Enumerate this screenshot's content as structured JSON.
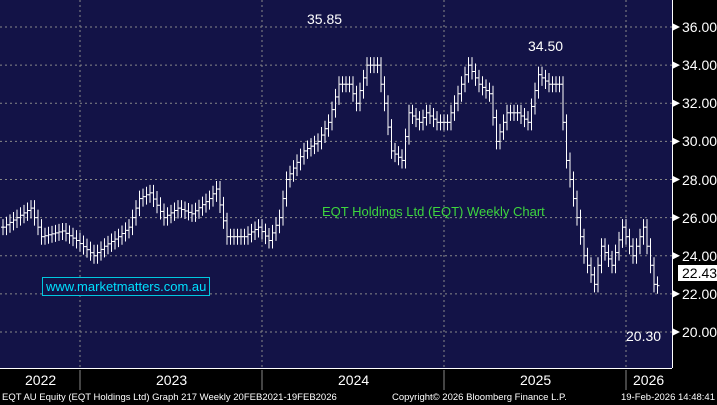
{
  "chart_data": {
    "type": "ohlc-bar",
    "title": "EQT Holdings Ltd (EQT) Weekly Chart",
    "ylim": [
      19.3,
      37
    ],
    "yticks": [
      "20.00",
      "22.00",
      "24.00",
      "26.00",
      "28.00",
      "30.00",
      "32.00",
      "34.00",
      "36.00"
    ],
    "ytick_values": [
      20,
      22,
      24,
      26,
      28,
      30,
      32,
      34,
      36
    ],
    "xticks": [
      "2022",
      "2023",
      "2024",
      "2025",
      "2026"
    ],
    "bar_spread": 0.7,
    "points_week_price": [
      [
        0,
        25.5
      ],
      [
        8,
        26.5
      ],
      [
        11,
        25
      ],
      [
        17,
        25.3
      ],
      [
        21,
        24.8
      ],
      [
        26,
        24
      ],
      [
        29,
        24.5
      ],
      [
        33,
        25
      ],
      [
        36,
        25.5
      ],
      [
        39,
        27
      ],
      [
        42,
        27.3
      ],
      [
        46,
        26
      ],
      [
        50,
        26.5
      ],
      [
        54,
        26.2
      ],
      [
        59,
        27
      ],
      [
        61,
        27.5
      ],
      [
        64,
        25
      ],
      [
        69,
        25
      ],
      [
        73,
        25.5
      ],
      [
        76,
        24.8
      ],
      [
        79,
        26
      ],
      [
        81,
        28
      ],
      [
        86,
        29.5
      ],
      [
        90,
        30
      ],
      [
        93,
        31
      ],
      [
        96,
        33
      ],
      [
        99,
        33
      ],
      [
        101,
        32
      ],
      [
        104,
        34
      ],
      [
        107,
        34
      ],
      [
        109,
        32
      ],
      [
        111,
        29.5
      ],
      [
        114,
        29
      ],
      [
        116,
        31.5
      ],
      [
        119,
        31
      ],
      [
        121,
        31.5
      ],
      [
        124,
        31
      ],
      [
        127,
        31
      ],
      [
        130,
        32.5
      ],
      [
        133,
        34
      ],
      [
        136,
        33
      ],
      [
        139,
        32.5
      ],
      [
        141,
        30
      ],
      [
        144,
        31.5
      ],
      [
        147,
        31.5
      ],
      [
        150,
        31
      ],
      [
        153,
        33.5
      ],
      [
        156,
        33
      ],
      [
        159,
        33
      ],
      [
        161,
        29
      ],
      [
        163,
        27
      ],
      [
        166,
        24
      ],
      [
        169,
        22.5
      ],
      [
        171,
        24.5
      ],
      [
        174,
        23.5
      ],
      [
        177,
        25.5
      ],
      [
        180,
        24
      ],
      [
        183,
        25.5
      ],
      [
        186,
        22.5
      ],
      [
        187,
        22.43
      ]
    ],
    "annotations": {
      "high": "35.85",
      "high2": "34.50",
      "low": "20.30",
      "last": "22.43"
    }
  },
  "website": "www.marketmatters.com.au",
  "footer": {
    "left": "EQT AU Equity (EQT Holdings Ltd) Graph 217 Weekly 20FEB2021-19FEB2026",
    "center": "Copyright© 2026 Bloomberg Finance L.P.",
    "right": "19-Feb-2026 14:48:41"
  },
  "colors": {
    "bg": "#131347",
    "bars": "#ffffff",
    "title": "#3ed63e",
    "website": "#00e0ff"
  }
}
